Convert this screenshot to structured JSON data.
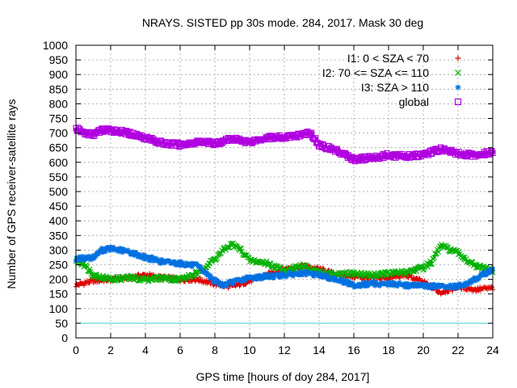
{
  "chart_data": {
    "type": "scatter",
    "title": "NRAYS. SISTED pp 30s mode. 284, 2017. Mask 30 deg",
    "xlabel": "GPS time [hours of doy 284, 2017]",
    "ylabel": "Number of GPS receiver-satellite rays",
    "xlim": [
      0,
      24
    ],
    "ylim": [
      0,
      1000
    ],
    "xticks": [
      0,
      2,
      4,
      6,
      8,
      10,
      12,
      14,
      16,
      18,
      20,
      22,
      24
    ],
    "yticks": [
      0,
      50,
      100,
      150,
      200,
      250,
      300,
      350,
      400,
      450,
      500,
      550,
      600,
      650,
      700,
      750,
      800,
      850,
      900,
      950,
      1000
    ],
    "grid": true,
    "legend_position": "top-right",
    "reference_line": {
      "y": 50,
      "color": "#40d0d0"
    },
    "series": [
      {
        "name": "I1: 0 < SZA < 70",
        "marker": "plus",
        "color": "#e00000",
        "x": [
          0,
          1,
          2,
          3,
          4,
          5,
          6,
          7,
          8,
          9,
          10,
          11,
          12,
          13,
          14,
          15,
          16,
          17,
          18,
          19,
          20,
          21,
          22,
          23,
          24
        ],
        "y": [
          180,
          195,
          200,
          205,
          215,
          205,
          200,
          200,
          185,
          175,
          195,
          215,
          235,
          245,
          235,
          215,
          210,
          205,
          205,
          215,
          190,
          155,
          175,
          165,
          170
        ]
      },
      {
        "name": "I2: 70 <= SZA <= 110",
        "marker": "x",
        "color": "#00b000",
        "x": [
          0,
          0.5,
          1,
          2,
          3,
          4,
          5,
          6,
          7,
          8,
          8.5,
          9,
          9.5,
          10,
          11,
          12,
          13,
          14,
          15,
          16,
          17,
          18,
          19,
          20,
          20.5,
          21,
          22,
          23,
          24
        ],
        "y": [
          265,
          250,
          215,
          200,
          205,
          200,
          205,
          200,
          220,
          270,
          300,
          320,
          300,
          265,
          255,
          230,
          245,
          225,
          215,
          220,
          215,
          220,
          225,
          240,
          260,
          315,
          290,
          245,
          230
        ]
      },
      {
        "name": "I3: SZA > 110",
        "marker": "star",
        "color": "#0070e0",
        "x": [
          0,
          1,
          1.5,
          2,
          3,
          4,
          5,
          6,
          7,
          8,
          8.5,
          9,
          10,
          11,
          12,
          13,
          14,
          15,
          16,
          17,
          18,
          19,
          20,
          21,
          22,
          23,
          24
        ],
        "y": [
          270,
          275,
          300,
          305,
          295,
          275,
          260,
          255,
          245,
          195,
          180,
          190,
          205,
          210,
          215,
          220,
          215,
          200,
          180,
          185,
          185,
          180,
          178,
          175,
          175,
          200,
          235
        ]
      },
      {
        "name": "global",
        "marker": "square",
        "color": "#b000e0",
        "x": [
          0,
          0.5,
          1,
          1.5,
          2,
          3,
          4,
          5,
          6,
          7,
          8,
          9,
          10,
          11,
          12,
          13,
          13.5,
          14,
          15,
          16,
          17,
          18,
          19,
          20,
          21,
          22,
          23,
          24
        ],
        "y": [
          715,
          700,
          695,
          710,
          710,
          700,
          685,
          665,
          660,
          670,
          665,
          680,
          670,
          685,
          685,
          695,
          700,
          660,
          640,
          610,
          615,
          625,
          620,
          625,
          645,
          630,
          625,
          635
        ]
      }
    ]
  }
}
